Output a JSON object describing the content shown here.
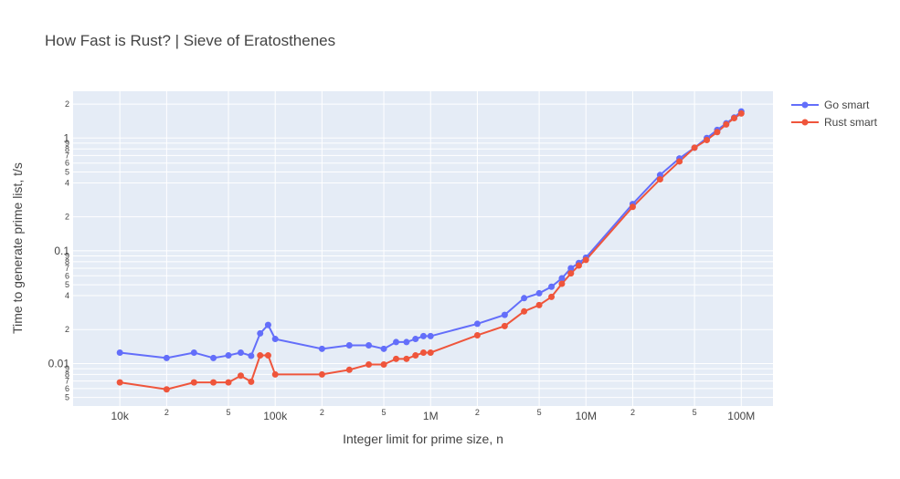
{
  "chart_data": {
    "type": "line",
    "title": "How Fast is Rust? | Sieve of Eratosthenes",
    "xlabel": "Integer limit for prime size, n",
    "ylabel": "Time to generate prime list, t/s",
    "xscale": "log",
    "yscale": "log",
    "xlim": [
      5000,
      160000000
    ],
    "ylim": [
      0.0042,
      2.6
    ],
    "grid": true,
    "legend_position": "top-right",
    "x_major_ticks": [
      {
        "value": 10000,
        "label": "10k"
      },
      {
        "value": 100000,
        "label": "100k"
      },
      {
        "value": 1000000,
        "label": "1M"
      },
      {
        "value": 10000000,
        "label": "10M"
      },
      {
        "value": 100000000,
        "label": "100M"
      }
    ],
    "x_minor_ticks": [
      {
        "value": 20000,
        "label": "2"
      },
      {
        "value": 50000,
        "label": "5"
      },
      {
        "value": 200000,
        "label": "2"
      },
      {
        "value": 500000,
        "label": "5"
      },
      {
        "value": 2000000,
        "label": "2"
      },
      {
        "value": 5000000,
        "label": "5"
      },
      {
        "value": 20000000,
        "label": "2"
      },
      {
        "value": 50000000,
        "label": "5"
      }
    ],
    "y_major_ticks": [
      {
        "value": 0.01,
        "label": "0.01"
      },
      {
        "value": 0.1,
        "label": "0.1"
      },
      {
        "value": 1,
        "label": "1"
      }
    ],
    "y_minor_ticks": [
      {
        "value": 0.005,
        "label": "5"
      },
      {
        "value": 0.006,
        "label": "6"
      },
      {
        "value": 0.007,
        "label": "7"
      },
      {
        "value": 0.008,
        "label": "8"
      },
      {
        "value": 0.009,
        "label": "9"
      },
      {
        "value": 0.02,
        "label": "2"
      },
      {
        "value": 0.04,
        "label": "4"
      },
      {
        "value": 0.05,
        "label": "5"
      },
      {
        "value": 0.06,
        "label": "6"
      },
      {
        "value": 0.07,
        "label": "7"
      },
      {
        "value": 0.08,
        "label": "8"
      },
      {
        "value": 0.09,
        "label": "9"
      },
      {
        "value": 0.2,
        "label": "2"
      },
      {
        "value": 0.4,
        "label": "4"
      },
      {
        "value": 0.5,
        "label": "5"
      },
      {
        "value": 0.6,
        "label": "6"
      },
      {
        "value": 0.7,
        "label": "7"
      },
      {
        "value": 0.8,
        "label": "8"
      },
      {
        "value": 0.9,
        "label": "9"
      },
      {
        "value": 2,
        "label": "2"
      }
    ],
    "x": [
      10000,
      20000,
      30000,
      40000,
      50000,
      60000,
      70000,
      80000,
      90000,
      100000,
      200000,
      300000,
      400000,
      500000,
      600000,
      700000,
      800000,
      900000,
      1000000,
      2000000,
      3000000,
      4000000,
      5000000,
      6000000,
      7000000,
      8000000,
      9000000,
      10000000,
      20000000,
      30000000,
      40000000,
      50000000,
      60000000,
      70000000,
      80000000,
      90000000,
      100000000
    ],
    "series": [
      {
        "name": "Go smart",
        "color": "#636efa",
        "values": [
          0.0125,
          0.0112,
          0.0125,
          0.0112,
          0.0118,
          0.0125,
          0.0117,
          0.0185,
          0.022,
          0.0165,
          0.0135,
          0.0145,
          0.0145,
          0.0135,
          0.0155,
          0.0155,
          0.0165,
          0.0175,
          0.0175,
          0.0225,
          0.027,
          0.038,
          0.042,
          0.048,
          0.057,
          0.07,
          0.078,
          0.087,
          0.26,
          0.47,
          0.66,
          0.82,
          1.0,
          1.18,
          1.35,
          1.52,
          1.72
        ]
      },
      {
        "name": "Rust smart",
        "color": "#ef553b",
        "values": [
          0.0068,
          0.0059,
          0.0068,
          0.0068,
          0.0068,
          0.0078,
          0.0069,
          0.0118,
          0.0118,
          0.008,
          0.008,
          0.0088,
          0.0098,
          0.0098,
          0.011,
          0.011,
          0.0118,
          0.0125,
          0.0125,
          0.0178,
          0.0215,
          0.029,
          0.033,
          0.039,
          0.051,
          0.063,
          0.074,
          0.083,
          0.245,
          0.43,
          0.62,
          0.82,
          0.96,
          1.13,
          1.32,
          1.5,
          1.65
        ]
      }
    ]
  }
}
